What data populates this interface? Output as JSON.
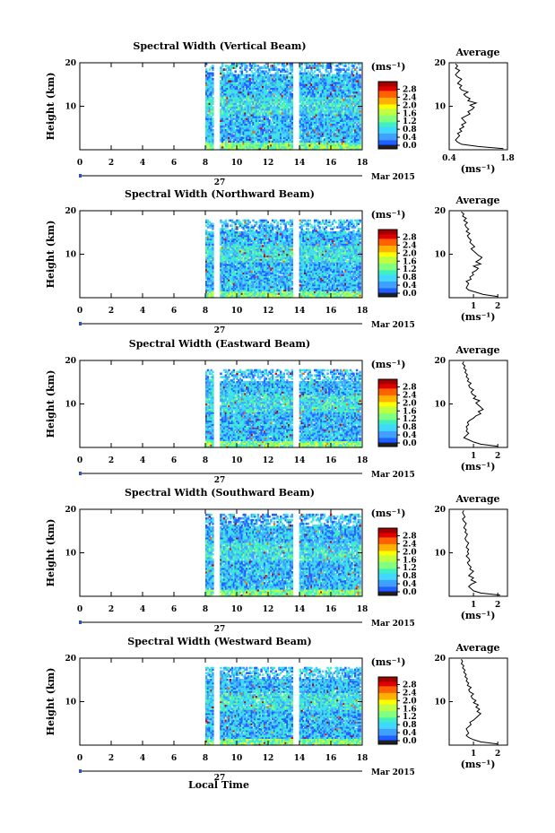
{
  "figure": {
    "xlabel": "Local Time",
    "date_day": "27",
    "date_month": "Mar 2015"
  },
  "colors": {
    "colormap": [
      "#000080",
      "#0020d0",
      "#2060ff",
      "#40a0ff",
      "#40d8ff",
      "#40f0c0",
      "#80ff80",
      "#c0ff40",
      "#ffff00",
      "#ffb000",
      "#ff6000",
      "#e00000",
      "#a00000"
    ],
    "missing": "#ffffff",
    "bottom_band": "#202020"
  },
  "chart_data": [
    {
      "type": "heatmap",
      "title": "Spectral Width (Vertical Beam)",
      "ylabel": "Height (km)",
      "xlim": [
        0,
        18
      ],
      "ylim": [
        0,
        20
      ],
      "xticks": [
        "0",
        "2",
        "4",
        "6",
        "8",
        "10",
        "12",
        "14",
        "16",
        "18"
      ],
      "yticks": [
        "10",
        "20"
      ],
      "gaps": [
        [
          8.6,
          8.9
        ],
        [
          13.6,
          13.9
        ]
      ],
      "data_start": 8.0,
      "data_end": 17.9,
      "top_km": 20,
      "colorbar": {
        "unit": "(ms⁻¹)",
        "ticks": [
          "2.8",
          "2.4",
          "2.0",
          "1.6",
          "1.2",
          "0.8",
          "0.4",
          "0.0"
        ],
        "range": [
          0.0,
          3.0
        ]
      },
      "profile": {
        "title": "Average",
        "xlabel": "(ms⁻¹)",
        "xticks": [
          "0.4",
          "1.8"
        ],
        "xlim": [
          0.4,
          1.8
        ],
        "ylim": [
          0,
          20
        ],
        "yticks": [
          "10",
          "20"
        ],
        "values": [
          1.7,
          1.1,
          0.7,
          0.6,
          0.55,
          0.6,
          0.65,
          0.6,
          0.7,
          0.65,
          0.75,
          0.7,
          0.8,
          0.75,
          0.7,
          0.8,
          0.9,
          0.85,
          0.95,
          1.0,
          0.9,
          1.05,
          0.85,
          0.9,
          0.8,
          0.75,
          0.85,
          0.7,
          0.65,
          0.7,
          0.6,
          0.65,
          0.7,
          0.6,
          0.55,
          0.6,
          0.65,
          0.55,
          0.6,
          0.55
        ]
      }
    },
    {
      "type": "heatmap",
      "title": "Spectral Width (Northward Beam)",
      "ylabel": "Height (km)",
      "xlim": [
        0,
        18
      ],
      "ylim": [
        0,
        20
      ],
      "xticks": [
        "0",
        "2",
        "4",
        "6",
        "8",
        "10",
        "12",
        "14",
        "16",
        "18"
      ],
      "yticks": [
        "10",
        "20"
      ],
      "gaps": [
        [
          8.6,
          8.9
        ],
        [
          13.6,
          13.9
        ]
      ],
      "data_start": 8.0,
      "data_end": 17.9,
      "top_km": 18,
      "colorbar": {
        "unit": "(ms⁻¹)",
        "ticks": [
          "2.8",
          "2.4",
          "2.0",
          "1.6",
          "1.2",
          "0.8",
          "0.4",
          "0.0"
        ],
        "range": [
          0.0,
          3.0
        ]
      },
      "profile": {
        "title": "Average",
        "xlabel": "(ms⁻¹)",
        "xticks": [
          "1",
          "2"
        ],
        "xlim": [
          0,
          2.4
        ],
        "ylim": [
          0,
          20
        ],
        "yticks": [
          "10",
          "20"
        ],
        "values": [
          2.0,
          1.4,
          1.1,
          0.8,
          0.7,
          0.75,
          0.8,
          0.7,
          0.9,
          0.85,
          1.0,
          0.95,
          1.1,
          1.2,
          1.0,
          1.3,
          1.1,
          1.25,
          1.35,
          1.2,
          1.1,
          1.0,
          0.9,
          1.05,
          0.95,
          0.85,
          0.9,
          0.8,
          0.75,
          0.85,
          0.7,
          0.8,
          0.7,
          0.65,
          0.75,
          0.6,
          0.7,
          0.55,
          0.6,
          0.5
        ]
      }
    },
    {
      "type": "heatmap",
      "title": "Spectral Width (Eastward Beam)",
      "ylabel": "Height (km)",
      "xlim": [
        0,
        18
      ],
      "ylim": [
        0,
        20
      ],
      "xticks": [
        "0",
        "2",
        "4",
        "6",
        "8",
        "10",
        "12",
        "14",
        "16",
        "18"
      ],
      "yticks": [
        "10",
        "20"
      ],
      "gaps": [
        [
          8.6,
          8.9
        ],
        [
          13.6,
          13.9
        ]
      ],
      "data_start": 8.0,
      "data_end": 17.9,
      "top_km": 18,
      "colorbar": {
        "unit": "(ms⁻¹)",
        "ticks": [
          "2.8",
          "2.4",
          "2.0",
          "1.6",
          "1.2",
          "0.8",
          "0.4",
          "0.0"
        ],
        "range": [
          0.0,
          3.0
        ]
      },
      "profile": {
        "title": "Average",
        "xlabel": "(ms⁻¹)",
        "xticks": [
          "1",
          "2"
        ],
        "xlim": [
          0,
          2.4
        ],
        "ylim": [
          0,
          20
        ],
        "yticks": [
          "10",
          "20"
        ],
        "values": [
          2.0,
          1.3,
          1.0,
          0.8,
          0.6,
          0.7,
          0.8,
          0.7,
          0.75,
          0.7,
          0.8,
          0.75,
          0.85,
          1.0,
          1.1,
          1.3,
          1.2,
          1.4,
          1.3,
          1.2,
          1.1,
          1.25,
          1.0,
          1.1,
          0.95,
          0.9,
          1.0,
          0.85,
          0.8,
          0.9,
          0.75,
          0.8,
          0.7,
          0.75,
          0.65,
          0.7,
          0.6,
          0.65,
          0.55,
          0.6
        ]
      }
    },
    {
      "type": "heatmap",
      "title": "Spectral Width (Southward Beam)",
      "ylabel": "Height (km)",
      "xlim": [
        0,
        18
      ],
      "ylim": [
        0,
        20
      ],
      "xticks": [
        "0",
        "2",
        "4",
        "6",
        "8",
        "10",
        "12",
        "14",
        "16",
        "18"
      ],
      "yticks": [
        "10",
        "20"
      ],
      "gaps": [
        [
          8.6,
          8.9
        ],
        [
          13.6,
          13.9
        ]
      ],
      "data_start": 8.0,
      "data_end": 17.9,
      "top_km": 19,
      "colorbar": {
        "unit": "(ms⁻¹)",
        "ticks": [
          "2.8",
          "2.4",
          "2.0",
          "1.6",
          "1.2",
          "0.8",
          "0.4",
          "0.0"
        ],
        "range": [
          0.0,
          3.0
        ]
      },
      "profile": {
        "title": "Average",
        "xlabel": "(ms⁻¹)",
        "xticks": [
          "1",
          "2"
        ],
        "xlim": [
          0,
          2.4
        ],
        "ylim": [
          0,
          20
        ],
        "yticks": [
          "10",
          "20"
        ],
        "values": [
          2.1,
          1.3,
          1.0,
          0.9,
          0.8,
          0.9,
          1.1,
          0.9,
          1.0,
          0.8,
          0.9,
          1.0,
          0.85,
          0.9,
          0.8,
          0.75,
          0.85,
          0.8,
          0.7,
          0.8,
          0.75,
          0.8,
          0.7,
          0.75,
          0.8,
          0.7,
          0.65,
          0.7,
          0.75,
          0.65,
          0.7,
          0.6,
          0.65,
          0.7,
          0.6,
          0.55,
          0.65,
          0.6,
          0.55,
          0.6
        ]
      }
    },
    {
      "type": "heatmap",
      "title": "Spectral Width (Westward Beam)",
      "ylabel": "Height (km)",
      "xlim": [
        0,
        18
      ],
      "ylim": [
        0,
        20
      ],
      "xticks": [
        "0",
        "2",
        "4",
        "6",
        "8",
        "10",
        "12",
        "14",
        "16",
        "18"
      ],
      "yticks": [
        "10",
        "20"
      ],
      "gaps": [
        [
          8.6,
          8.9
        ],
        [
          13.6,
          13.9
        ]
      ],
      "data_start": 8.0,
      "data_end": 17.9,
      "top_km": 18,
      "colorbar": {
        "unit": "(ms⁻¹)",
        "ticks": [
          "2.8",
          "2.4",
          "2.0",
          "1.6",
          "1.2",
          "0.8",
          "0.4",
          "0.0"
        ],
        "range": [
          0.0,
          3.0
        ]
      },
      "profile": {
        "title": "Average",
        "xlabel": "(ms⁻¹)",
        "xticks": [
          "1",
          "2"
        ],
        "xlim": [
          0,
          2.4
        ],
        "ylim": [
          0,
          20
        ],
        "yticks": [
          "10",
          "20"
        ],
        "values": [
          2.0,
          1.3,
          1.0,
          0.8,
          0.7,
          0.8,
          0.75,
          0.7,
          0.8,
          0.9,
          0.85,
          1.0,
          1.1,
          1.2,
          1.3,
          1.15,
          1.25,
          1.1,
          1.2,
          1.0,
          1.1,
          0.95,
          0.9,
          1.0,
          0.85,
          0.8,
          0.9,
          0.75,
          0.8,
          0.7,
          0.75,
          0.65,
          0.7,
          0.6,
          0.65,
          0.55,
          0.6,
          0.5,
          0.55,
          0.5
        ]
      }
    }
  ]
}
